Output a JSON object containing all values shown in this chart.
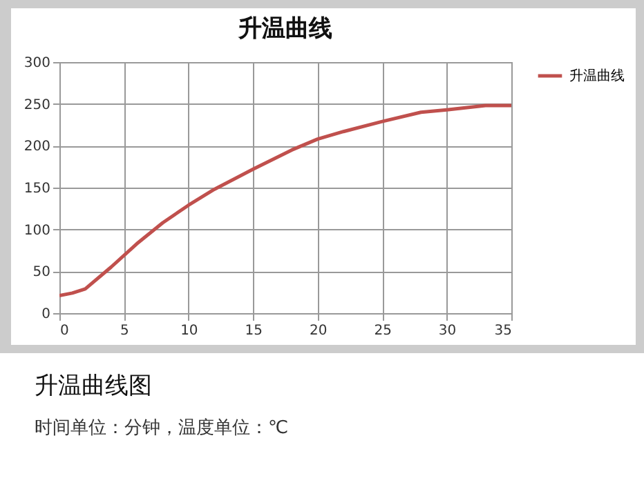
{
  "chart_data": {
    "type": "line",
    "title": "升温曲线",
    "x": [
      0,
      1,
      2,
      4,
      6,
      8,
      10,
      12,
      15,
      18,
      20,
      22,
      25,
      28,
      30,
      33,
      35
    ],
    "series": [
      {
        "name": "升温曲线",
        "color": "#c0504d",
        "values": [
          21,
          24,
          29,
          55,
          83,
          108,
          129,
          148,
          172,
          195,
          208,
          217,
          229,
          240,
          243,
          248,
          248
        ]
      }
    ],
    "xlim": [
      0,
      35
    ],
    "xticks": [
      0,
      5,
      10,
      15,
      20,
      25,
      30,
      35
    ],
    "ylim": [
      0,
      300
    ],
    "yticks": [
      0,
      50,
      100,
      150,
      200,
      250,
      300
    ],
    "grid": true,
    "legend": "right",
    "annotations": [
      "升温曲线图",
      "时间单位：分钟，温度单位：℃"
    ]
  }
}
